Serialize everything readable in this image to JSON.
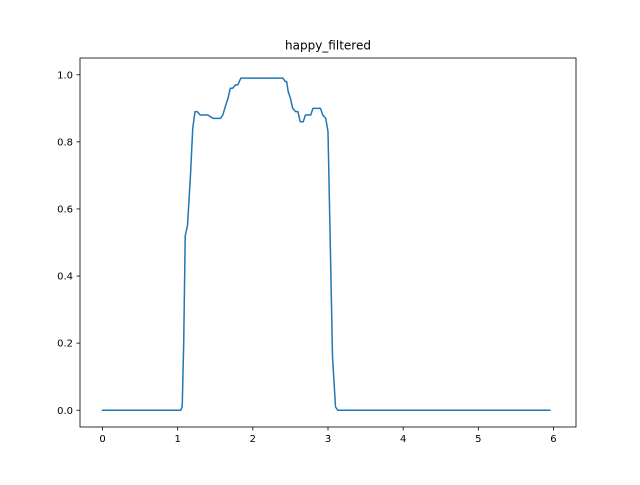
{
  "chart_data": {
    "type": "line",
    "title": "happy_filtered",
    "xlabel": "",
    "ylabel": "",
    "xlim": [
      -0.3,
      6.3
    ],
    "ylim": [
      -0.05,
      1.05
    ],
    "xticks": [
      0,
      1,
      2,
      3,
      4,
      5,
      6
    ],
    "yticks": [
      0.0,
      0.2,
      0.4,
      0.6,
      0.8,
      1.0
    ],
    "ytick_labels": [
      "0.0",
      "0.2",
      "0.4",
      "0.6",
      "0.8",
      "1.0"
    ],
    "grid": false,
    "line_color": "#1f77b4",
    "series": [
      {
        "x": [
          0.0,
          0.5,
          1.0,
          1.04,
          1.06,
          1.08,
          1.1,
          1.13,
          1.17,
          1.2,
          1.23,
          1.26,
          1.3,
          1.33,
          1.37,
          1.4,
          1.47,
          1.5,
          1.53,
          1.57,
          1.6,
          1.64,
          1.67,
          1.7,
          1.73,
          1.77,
          1.8,
          1.84,
          1.87,
          1.9,
          2.0,
          2.2,
          2.4,
          2.43,
          2.45,
          2.47,
          2.5,
          2.53,
          2.57,
          2.6,
          2.63,
          2.67,
          2.7,
          2.73,
          2.77,
          2.8,
          2.87,
          2.9,
          2.93,
          2.97,
          3.0,
          3.03,
          3.06,
          3.1,
          3.13,
          3.17,
          3.3,
          4.0,
          5.0,
          5.95
        ],
        "y": [
          0.0,
          0.0,
          0.0,
          0.0,
          0.01,
          0.2,
          0.52,
          0.55,
          0.7,
          0.84,
          0.89,
          0.89,
          0.88,
          0.88,
          0.88,
          0.88,
          0.87,
          0.87,
          0.87,
          0.87,
          0.88,
          0.91,
          0.93,
          0.96,
          0.96,
          0.97,
          0.97,
          0.99,
          0.99,
          0.99,
          0.99,
          0.99,
          0.99,
          0.98,
          0.98,
          0.95,
          0.93,
          0.9,
          0.89,
          0.89,
          0.86,
          0.86,
          0.88,
          0.88,
          0.88,
          0.9,
          0.9,
          0.9,
          0.88,
          0.87,
          0.83,
          0.5,
          0.16,
          0.01,
          0.0,
          0.0,
          0.0,
          0.0,
          0.0,
          0.0
        ]
      }
    ]
  }
}
